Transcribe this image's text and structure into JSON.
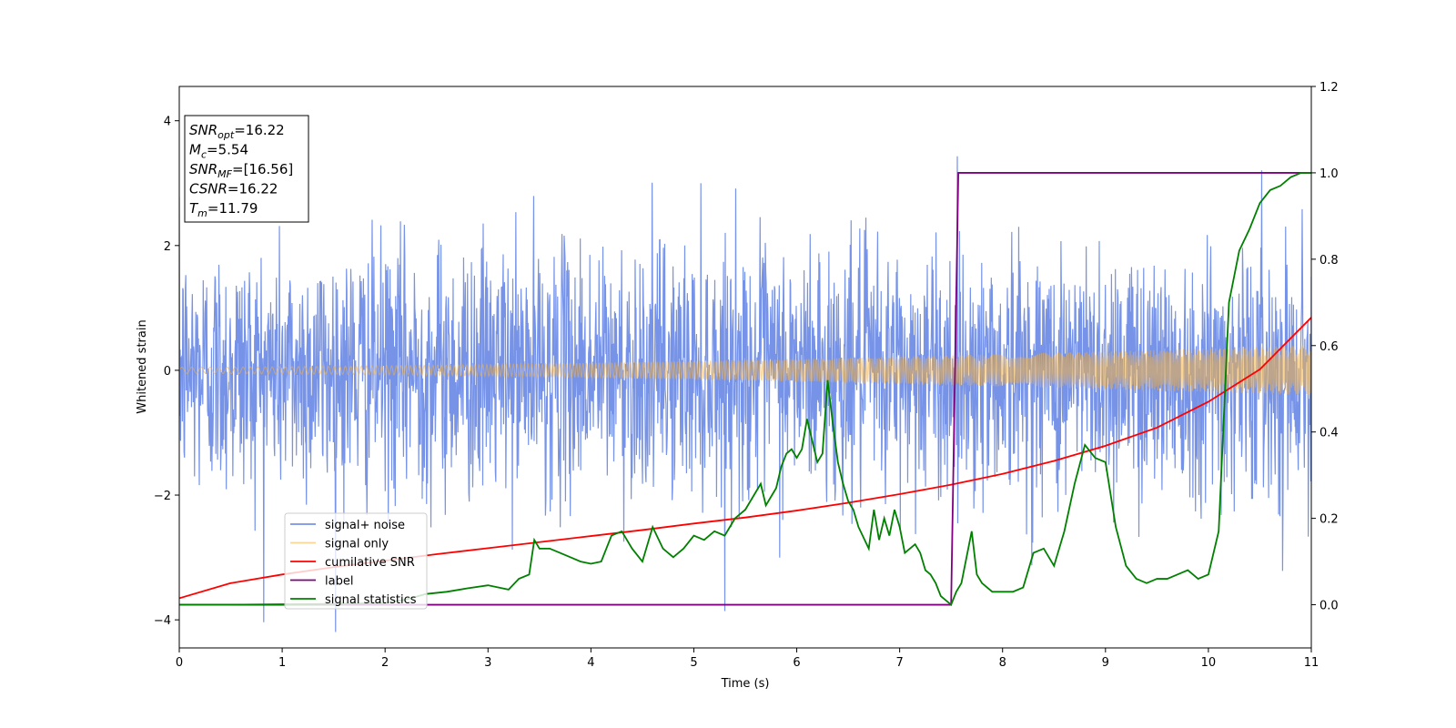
{
  "chart_data": {
    "type": "line",
    "title": "",
    "xlabel": "Time (s)",
    "ylabel": "Whitened strain",
    "xlim": [
      0,
      11
    ],
    "ylim_left": [
      -4.45,
      4.55
    ],
    "ylim_right": [
      -0.1,
      1.2
    ],
    "x_ticks": [
      "0",
      "1",
      "2",
      "3",
      "4",
      "5",
      "6",
      "7",
      "8",
      "9",
      "10",
      "11"
    ],
    "y_ticks_left": [
      "4",
      "2",
      "0",
      "−2",
      "−4"
    ],
    "y_ticks_right": [
      "1.2",
      "1.0",
      "0.8",
      "0.6",
      "0.4",
      "0.2",
      "0.0"
    ],
    "grid": false,
    "legend_position": "lower-left",
    "info_box": {
      "lines": [
        {
          "sym": "SNR",
          "sub": "opt",
          "val": "=16.22"
        },
        {
          "sym": "M",
          "sub": "c",
          "val": "=5.54"
        },
        {
          "sym": "SNR",
          "sub": "MF",
          "val": "=[16.56]"
        },
        {
          "sym": "CSNR",
          "sub": "",
          "val": "=16.22"
        },
        {
          "sym": "T",
          "sub": "m",
          "val": "=11.79"
        }
      ]
    },
    "series": [
      {
        "name": "signal+ noise",
        "axis": "left",
        "color": "#6a8ae6",
        "kind": "noise",
        "sigma": 1.0,
        "envelope_start": 0.05,
        "envelope_end": 0.4
      },
      {
        "name": "signal only",
        "axis": "left",
        "color": "#f5b341",
        "kind": "chirp",
        "amp_start": 0.05,
        "amp_end": 0.4
      },
      {
        "name": "cumilative SNR",
        "axis": "right",
        "color": "#ff0000",
        "x": [
          0,
          0.5,
          1,
          1.5,
          2,
          2.5,
          3,
          3.5,
          4,
          4.5,
          5,
          5.5,
          6,
          6.5,
          7,
          7.5,
          8,
          8.5,
          9,
          9.5,
          10,
          10.5,
          11
        ],
        "values": [
          0.015,
          0.05,
          0.07,
          0.087,
          0.102,
          0.117,
          0.131,
          0.145,
          0.159,
          0.173,
          0.188,
          0.202,
          0.218,
          0.236,
          0.256,
          0.278,
          0.303,
          0.333,
          0.368,
          0.41,
          0.47,
          0.545,
          0.665
        ]
      },
      {
        "name": "label",
        "axis": "right",
        "color": "#800080",
        "x": [
          0,
          7.5,
          7.57,
          11
        ],
        "values": [
          0.0,
          0.0,
          1.0,
          1.0
        ]
      },
      {
        "name": "signal statistics",
        "axis": "right",
        "color": "#008000",
        "x": [
          0,
          0.5,
          1,
          1.5,
          2,
          2.2,
          2.4,
          2.6,
          2.8,
          3.0,
          3.2,
          3.3,
          3.4,
          3.45,
          3.5,
          3.6,
          3.7,
          3.8,
          3.9,
          4.0,
          4.1,
          4.2,
          4.3,
          4.4,
          4.5,
          4.6,
          4.7,
          4.8,
          4.9,
          5.0,
          5.1,
          5.2,
          5.3,
          5.4,
          5.5,
          5.6,
          5.65,
          5.7,
          5.8,
          5.85,
          5.9,
          5.95,
          6.0,
          6.05,
          6.1,
          6.2,
          6.25,
          6.3,
          6.35,
          6.4,
          6.45,
          6.5,
          6.55,
          6.6,
          6.7,
          6.75,
          6.8,
          6.85,
          6.9,
          6.95,
          7.0,
          7.05,
          7.1,
          7.15,
          7.2,
          7.25,
          7.3,
          7.35,
          7.4,
          7.5,
          7.55,
          7.6,
          7.7,
          7.75,
          7.8,
          7.9,
          8.0,
          8.1,
          8.2,
          8.3,
          8.4,
          8.5,
          8.6,
          8.7,
          8.8,
          8.9,
          9.0,
          9.1,
          9.2,
          9.3,
          9.4,
          9.5,
          9.6,
          9.7,
          9.8,
          9.9,
          10.0,
          10.1,
          10.2,
          10.3,
          10.4,
          10.5,
          10.6,
          10.7,
          10.8,
          10.9,
          11
        ],
        "values": [
          0.0,
          0.0,
          0.001,
          0.002,
          0.004,
          0.012,
          0.025,
          0.03,
          0.038,
          0.045,
          0.035,
          0.06,
          0.07,
          0.15,
          0.13,
          0.13,
          0.12,
          0.11,
          0.1,
          0.095,
          0.1,
          0.16,
          0.17,
          0.13,
          0.1,
          0.18,
          0.13,
          0.11,
          0.13,
          0.16,
          0.15,
          0.17,
          0.16,
          0.2,
          0.22,
          0.26,
          0.28,
          0.23,
          0.27,
          0.32,
          0.35,
          0.36,
          0.34,
          0.36,
          0.43,
          0.33,
          0.35,
          0.52,
          0.42,
          0.33,
          0.28,
          0.24,
          0.22,
          0.18,
          0.13,
          0.22,
          0.15,
          0.2,
          0.16,
          0.22,
          0.18,
          0.12,
          0.13,
          0.14,
          0.12,
          0.08,
          0.07,
          0.05,
          0.02,
          0.0,
          0.03,
          0.05,
          0.17,
          0.07,
          0.05,
          0.03,
          0.03,
          0.03,
          0.04,
          0.12,
          0.13,
          0.09,
          0.17,
          0.28,
          0.37,
          0.34,
          0.33,
          0.18,
          0.09,
          0.06,
          0.05,
          0.06,
          0.06,
          0.07,
          0.08,
          0.06,
          0.07,
          0.17,
          0.7,
          0.82,
          0.87,
          0.93,
          0.96,
          0.97,
          0.99,
          1.0,
          1.0
        ]
      }
    ]
  }
}
